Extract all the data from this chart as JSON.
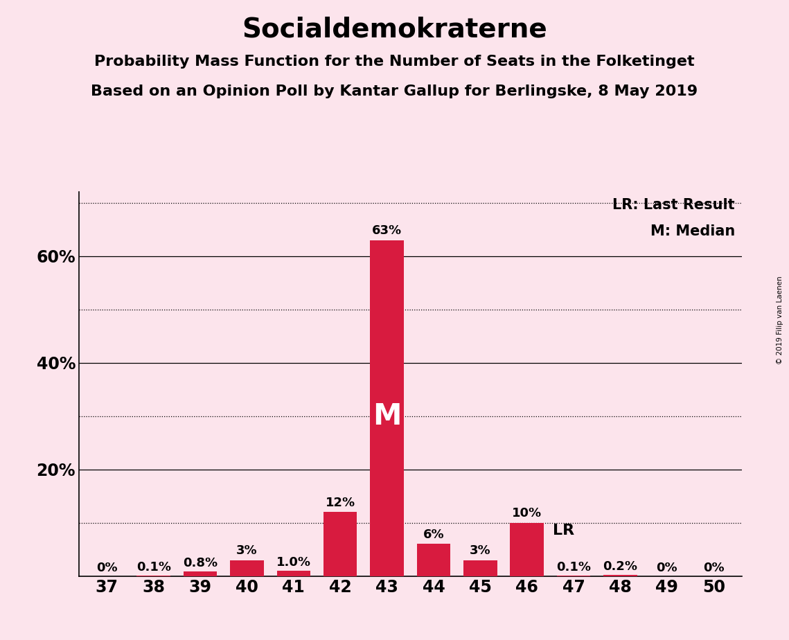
{
  "title": "Socialdemokraterne",
  "subtitle1": "Probability Mass Function for the Number of Seats in the Folketinget",
  "subtitle2": "Based on an Opinion Poll by Kantar Gallup for Berlingske, 8 May 2019",
  "copyright": "© 2019 Filip van Laenen",
  "categories": [
    37,
    38,
    39,
    40,
    41,
    42,
    43,
    44,
    45,
    46,
    47,
    48,
    49,
    50
  ],
  "values": [
    0.0,
    0.1,
    0.8,
    3.0,
    1.0,
    12.0,
    63.0,
    6.0,
    3.0,
    10.0,
    0.1,
    0.2,
    0.0,
    0.0
  ],
  "labels": [
    "0%",
    "0.1%",
    "0.8%",
    "3%",
    "1.0%",
    "12%",
    "63%",
    "6%",
    "3%",
    "10%",
    "0.1%",
    "0.2%",
    "0%",
    "0%"
  ],
  "bar_color": "#d81b3f",
  "background_color": "#fce4ec",
  "median_bar": 43,
  "last_result_bar": 47,
  "median_label": "M",
  "last_result_label": "LR",
  "legend_lr": "LR: Last Result",
  "legend_m": "M: Median",
  "yticks_labeled": [
    20,
    40,
    60
  ],
  "yticks_dotted": [
    10,
    30,
    50,
    70
  ],
  "ylim": [
    0,
    72
  ],
  "title_fontsize": 28,
  "subtitle_fontsize": 16,
  "label_fontsize": 13,
  "tick_fontsize": 17,
  "bar_width": 0.72
}
